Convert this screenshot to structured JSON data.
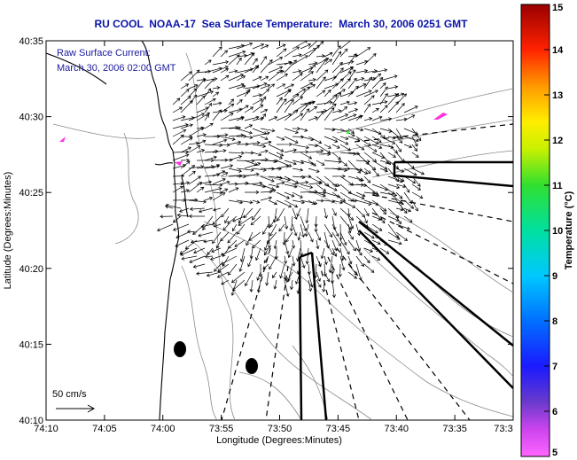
{
  "title": "RU COOL  NOAA-17  Sea Surface Temperature:  March 30, 2006 0251 GMT",
  "overlay": {
    "line1": "Raw Surface Current:",
    "line2": "March 30, 2006 02:00 GMT"
  },
  "scale_label": "50 cm/s",
  "colorbar": {
    "label": "Temperature (°C)",
    "ticks": [
      "15",
      "14",
      "13",
      "12",
      "11",
      "10",
      "9",
      "8",
      "7",
      "6",
      "5"
    ]
  },
  "chart_data": {
    "type": "map",
    "xlabel": "Longitude (Degrees:Minutes)",
    "ylabel": "Latitude (Degrees:Minutes)",
    "x_ticks": [
      "74:10",
      "74:05",
      "74:00",
      "73:55",
      "73:50",
      "73:45",
      "73:40",
      "73:35",
      "73:3"
    ],
    "y_ticks": [
      "40:35",
      "40:30",
      "40:25",
      "40:20",
      "40:15",
      "40:10"
    ],
    "xlim_deg_west": [
      74.1667,
      73.5
    ],
    "ylim_deg_north": [
      40.1667,
      40.5833
    ],
    "colorbar_range_c": [
      5,
      15
    ]
  },
  "colors": {
    "title": "#0a14a8",
    "overlay_text": "#1a1aa0",
    "coast": "#000000",
    "bathymetry": "#909090",
    "vectors": "#000000",
    "sst_pixel": "#ff33dd"
  }
}
